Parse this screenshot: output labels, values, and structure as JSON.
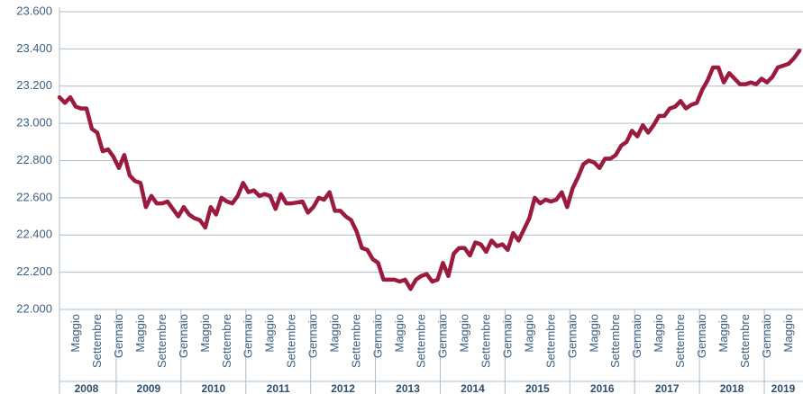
{
  "chart_data": {
    "type": "line",
    "color": "#9b1b3f",
    "grid": true,
    "ylim": [
      22000,
      23600
    ],
    "yticks": [
      {
        "value": 22000,
        "label": "22.000"
      },
      {
        "value": 22200,
        "label": "22.200"
      },
      {
        "value": 22400,
        "label": "22.400"
      },
      {
        "value": 22600,
        "label": "22.600"
      },
      {
        "value": 22800,
        "label": "22.800"
      },
      {
        "value": 23000,
        "label": "23.000"
      },
      {
        "value": 23200,
        "label": "23.200"
      },
      {
        "value": 23400,
        "label": "23.400"
      },
      {
        "value": 23600,
        "label": "23.600"
      }
    ],
    "groups": [
      {
        "label": "2008",
        "categories": [
          null,
          null,
          null,
          "Maggio",
          null,
          null,
          null,
          "Settembre",
          null,
          null,
          null
        ],
        "values": [
          23140,
          23110,
          23140,
          23090,
          23080,
          23080,
          22970,
          22950,
          22850,
          22860,
          22820
        ]
      },
      {
        "label": "2009",
        "categories": [
          "Gennaio",
          null,
          null,
          null,
          "Maggio",
          null,
          null,
          null,
          "Settembre",
          null,
          null,
          null
        ],
        "values": [
          22760,
          22830,
          22720,
          22690,
          22680,
          22550,
          22610,
          22570,
          22570,
          22580,
          22540,
          22500
        ]
      },
      {
        "label": "2010",
        "categories": [
          "Gennaio",
          null,
          null,
          null,
          "Maggio",
          null,
          null,
          null,
          "Settembre",
          null,
          null,
          null
        ],
        "values": [
          22550,
          22510,
          22490,
          22480,
          22440,
          22550,
          22510,
          22600,
          22580,
          22570,
          22610,
          22680
        ]
      },
      {
        "label": "2011",
        "categories": [
          "Gennaio",
          null,
          null,
          null,
          "Maggio",
          null,
          null,
          null,
          "Settembre",
          null,
          null,
          null
        ],
        "values": [
          22630,
          22640,
          22610,
          22620,
          22610,
          22540,
          22620,
          22570,
          22570,
          22575,
          22580,
          22520
        ]
      },
      {
        "label": "2012",
        "categories": [
          "Gennaio",
          null,
          null,
          null,
          "Maggio",
          null,
          null,
          null,
          "Settembre",
          null,
          null,
          null
        ],
        "values": [
          22550,
          22600,
          22590,
          22630,
          22530,
          22530,
          22500,
          22480,
          22420,
          22330,
          22320,
          22270
        ]
      },
      {
        "label": "2013",
        "categories": [
          "Gennaio",
          null,
          null,
          null,
          "Maggio",
          null,
          null,
          null,
          "Settembre",
          null,
          null,
          null
        ],
        "values": [
          22250,
          22160,
          22160,
          22160,
          22150,
          22160,
          22110,
          22160,
          22180,
          22190,
          22150,
          22160
        ]
      },
      {
        "label": "2014",
        "categories": [
          "Gennaio",
          null,
          null,
          null,
          "Maggio",
          null,
          null,
          null,
          "Settembre",
          null,
          null,
          null
        ],
        "values": [
          22250,
          22180,
          22300,
          22330,
          22330,
          22290,
          22360,
          22350,
          22310,
          22370,
          22340,
          22350
        ]
      },
      {
        "label": "2015",
        "categories": [
          "Gennaio",
          null,
          null,
          null,
          "Maggio",
          null,
          null,
          null,
          "Settembre",
          null,
          null,
          null
        ],
        "values": [
          22320,
          22410,
          22370,
          22430,
          22490,
          22600,
          22570,
          22590,
          22580,
          22590,
          22630,
          22550
        ]
      },
      {
        "label": "2016",
        "categories": [
          "Gennaio",
          null,
          null,
          null,
          "Maggio",
          null,
          null,
          null,
          "Settembre",
          null,
          null,
          null
        ],
        "values": [
          22650,
          22710,
          22780,
          22800,
          22790,
          22760,
          22810,
          22810,
          22830,
          22880,
          22900,
          22960
        ]
      },
      {
        "label": "2017",
        "categories": [
          "Gennaio",
          null,
          null,
          null,
          "Maggio",
          null,
          null,
          null,
          "Settembre",
          null,
          null,
          null
        ],
        "values": [
          22930,
          22990,
          22950,
          22990,
          23040,
          23040,
          23080,
          23090,
          23120,
          23080,
          23100,
          23110
        ]
      },
      {
        "label": "2018",
        "categories": [
          "Gennaio",
          null,
          null,
          null,
          "Maggio",
          null,
          null,
          null,
          "Settembre",
          null,
          null,
          null
        ],
        "values": [
          23180,
          23230,
          23300,
          23300,
          23220,
          23270,
          23240,
          23210,
          23210,
          23220,
          23210,
          23240
        ]
      },
      {
        "label": "2019",
        "categories": [
          "Gennaio",
          null,
          null,
          null,
          "Maggio",
          null,
          null
        ],
        "values": [
          23220,
          23250,
          23300,
          23310,
          23320,
          23350,
          23390
        ]
      }
    ]
  }
}
